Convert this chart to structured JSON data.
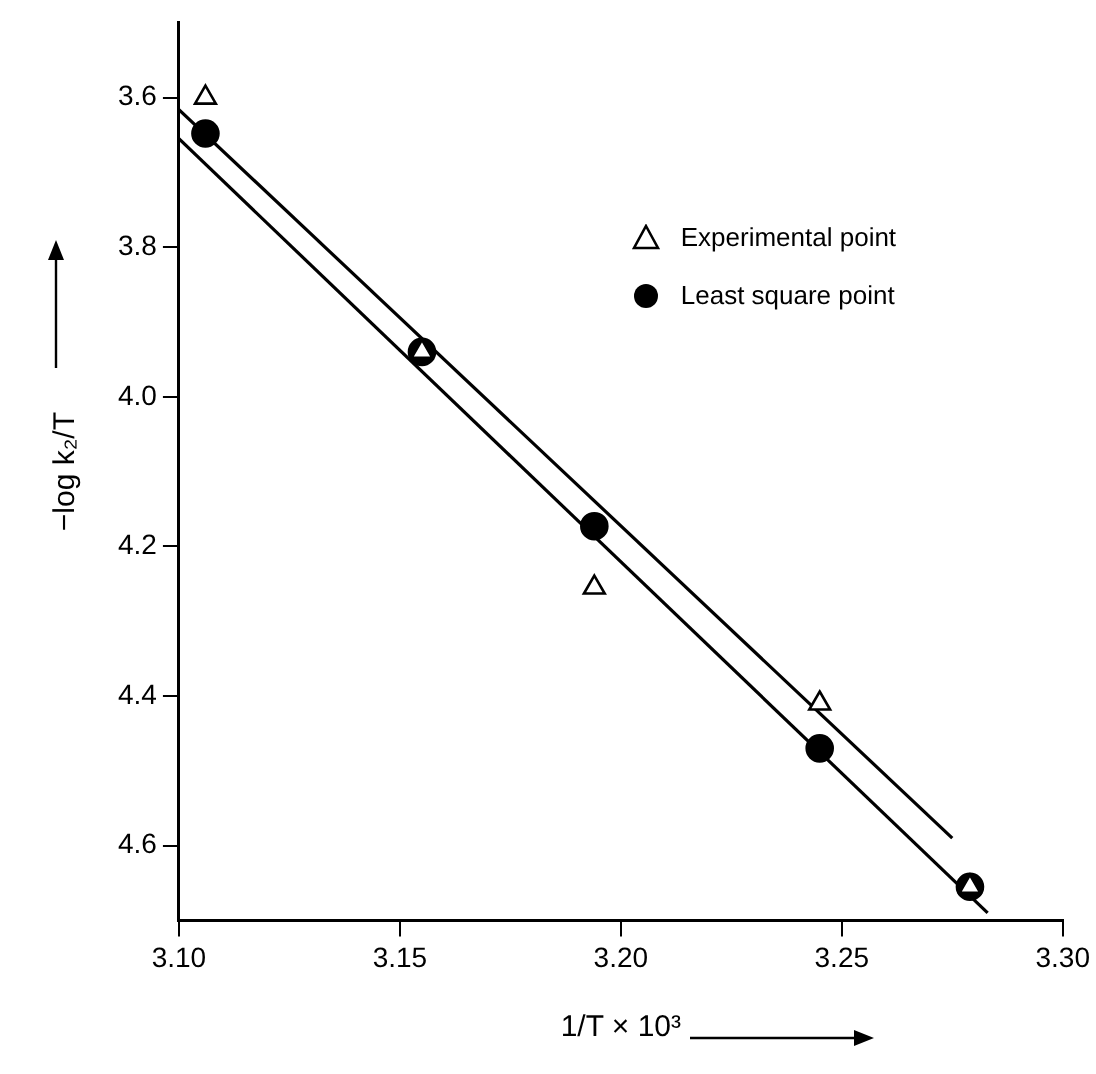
{
  "chart_data": {
    "type": "scatter",
    "xlabel": "1/T × 10³",
    "ylabel": "−log k₂/T",
    "xlim": [
      3.1,
      3.3
    ],
    "ylim": [
      4.7,
      3.5
    ],
    "xticks": [
      {
        "value": 3.1,
        "label": "3.10"
      },
      3.15,
      {
        "value": 3.2,
        "label": "3.20"
      },
      3.25,
      {
        "value": 3.3,
        "label": "3.30"
      }
    ],
    "yticks": [
      3.6,
      3.8,
      {
        "value": 4,
        "label": "4.0"
      },
      4.2,
      4.4,
      4.6
    ],
    "grid": false,
    "legend": "top right",
    "series": [
      {
        "name": "Experimental point",
        "type": "scatter",
        "marker": "triangle",
        "color": "#000000",
        "x": [
          3.106,
          3.155,
          3.194,
          3.245,
          3.279
        ],
        "values": [
          3.6,
          3.94,
          4.255,
          4.41,
          4.655
        ]
      },
      {
        "name": "Least square point",
        "type": "scatter",
        "marker": "circle",
        "color": "#000000",
        "x": [
          3.106,
          3.155,
          3.194,
          3.245,
          3.279
        ],
        "values": [
          3.648,
          3.94,
          4.173,
          4.47,
          4.655
        ]
      },
      {
        "type": "line",
        "marker": "none",
        "color": "#000000",
        "x": [
          3.1,
          3.275
        ],
        "values": [
          3.616,
          4.59
        ]
      },
      {
        "type": "line",
        "marker": "none",
        "color": "#000000",
        "x": [
          3.1,
          3.283
        ],
        "values": [
          3.655,
          4.69
        ]
      }
    ]
  }
}
